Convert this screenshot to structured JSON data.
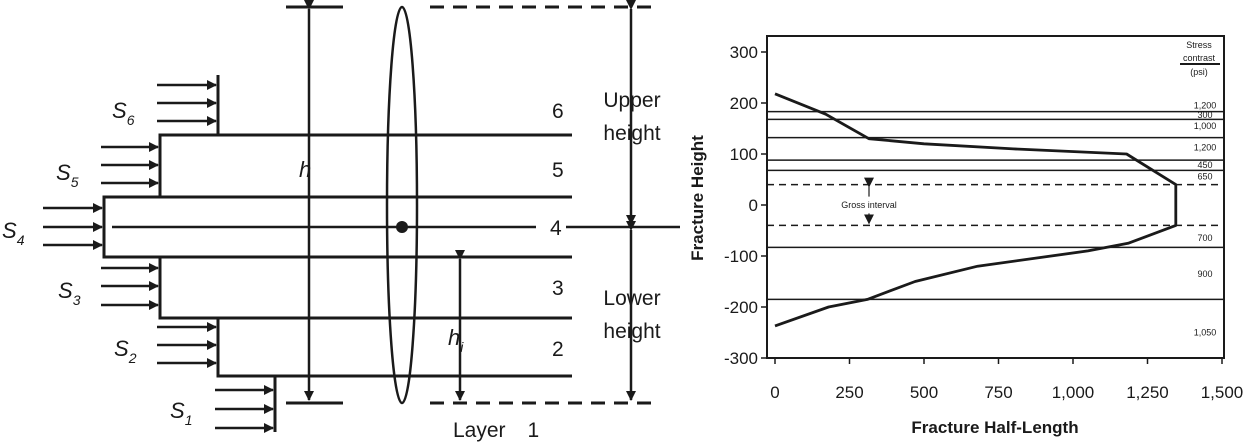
{
  "left_diagram": {
    "stress_labels": [
      {
        "base": "S",
        "sub": "6"
      },
      {
        "base": "S",
        "sub": "5"
      },
      {
        "base": "S",
        "sub": "4"
      },
      {
        "base": "S",
        "sub": "3"
      },
      {
        "base": "S",
        "sub": "2"
      },
      {
        "base": "S",
        "sub": "1"
      }
    ],
    "layer_numbers": [
      "6",
      "5",
      "4",
      "3",
      "2"
    ],
    "layer_1": {
      "word": "Layer",
      "num": "1"
    },
    "h_label": "h",
    "hi_label": {
      "base": "h",
      "sub": "i"
    },
    "upper_height": [
      "Upper",
      "height"
    ],
    "lower_height": [
      "Lower",
      "height"
    ]
  },
  "chart_data": {
    "type": "line",
    "xlabel": "Fracture Half-Length",
    "ylabel": "Fracture Height",
    "xlim": [
      0,
      1500
    ],
    "ylim": [
      -300,
      300
    ],
    "x_ticks": [
      "0",
      "250",
      "500",
      "750",
      "1,000",
      "1,250",
      "1,500"
    ],
    "y_ticks": [
      "300",
      "200",
      "100",
      "0",
      "-100",
      "-200",
      "-300"
    ],
    "legend_header": [
      "Stress",
      "contrast",
      "(psi)"
    ],
    "layer_boundaries_y": [
      183,
      168,
      132,
      88,
      68,
      -83,
      -185
    ],
    "gross_interval": {
      "label": "Gross interval",
      "top": 40,
      "bottom": -40
    },
    "stress_contrasts": [
      {
        "label": "1,200",
        "y": 195
      },
      {
        "label": "300",
        "y": 176
      },
      {
        "label": "1,000",
        "y": 155
      },
      {
        "label": "1,200",
        "y": 113
      },
      {
        "label": "450",
        "y": 78
      },
      {
        "label": "650",
        "y": 56
      },
      {
        "label": "700",
        "y": -65
      },
      {
        "label": "900",
        "y": -135
      },
      {
        "label": "1,050",
        "y": -250
      }
    ],
    "series": [
      {
        "x": [
          0,
          170,
          315,
          500,
          800,
          1180,
          1345,
          1345,
          1185,
          1050,
          680,
          470,
          310,
          180,
          0
        ],
        "y": [
          218,
          178,
          130,
          120,
          110,
          100,
          40,
          -40,
          -75,
          -90,
          -120,
          -150,
          -185,
          -200,
          -237
        ]
      }
    ]
  }
}
